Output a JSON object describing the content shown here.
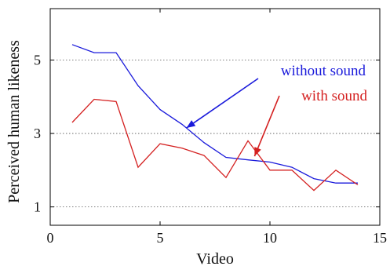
{
  "chart_data": {
    "type": "line",
    "xlabel": "Video",
    "ylabel": "Perceived human likeness",
    "xlim": [
      0,
      15
    ],
    "ylim": [
      0.5,
      6.4
    ],
    "xticks": [
      0,
      5,
      10,
      15
    ],
    "yticks": [
      1,
      3,
      5
    ],
    "grid": "horizontal dotted at y ticks",
    "colors": {
      "without_sound": "#1a1adb",
      "with_sound": "#d42020"
    },
    "series": [
      {
        "key": "without_sound",
        "x": [
          1,
          2,
          3,
          4,
          5,
          6,
          7,
          8,
          9,
          10,
          11,
          12,
          13,
          14
        ],
        "values": [
          5.42,
          5.2,
          5.2,
          4.3,
          3.65,
          3.25,
          2.75,
          2.35,
          2.28,
          2.22,
          2.08,
          1.77,
          1.65,
          1.65
        ]
      },
      {
        "key": "with_sound",
        "x": [
          1,
          2,
          3,
          4,
          5,
          6,
          7,
          8,
          9,
          10,
          11,
          12,
          13,
          14
        ],
        "values": [
          3.3,
          3.93,
          3.87,
          2.08,
          2.72,
          2.6,
          2.4,
          1.8,
          2.8,
          2.0,
          2.0,
          1.45,
          2.0,
          1.6
        ]
      }
    ],
    "annotations": [
      {
        "key": "without_sound",
        "text": "without sound",
        "arrow_to": [
          6.2,
          3.15
        ]
      },
      {
        "key": "with_sound",
        "text": "with sound",
        "arrow_to": [
          9.3,
          2.38
        ]
      }
    ]
  }
}
